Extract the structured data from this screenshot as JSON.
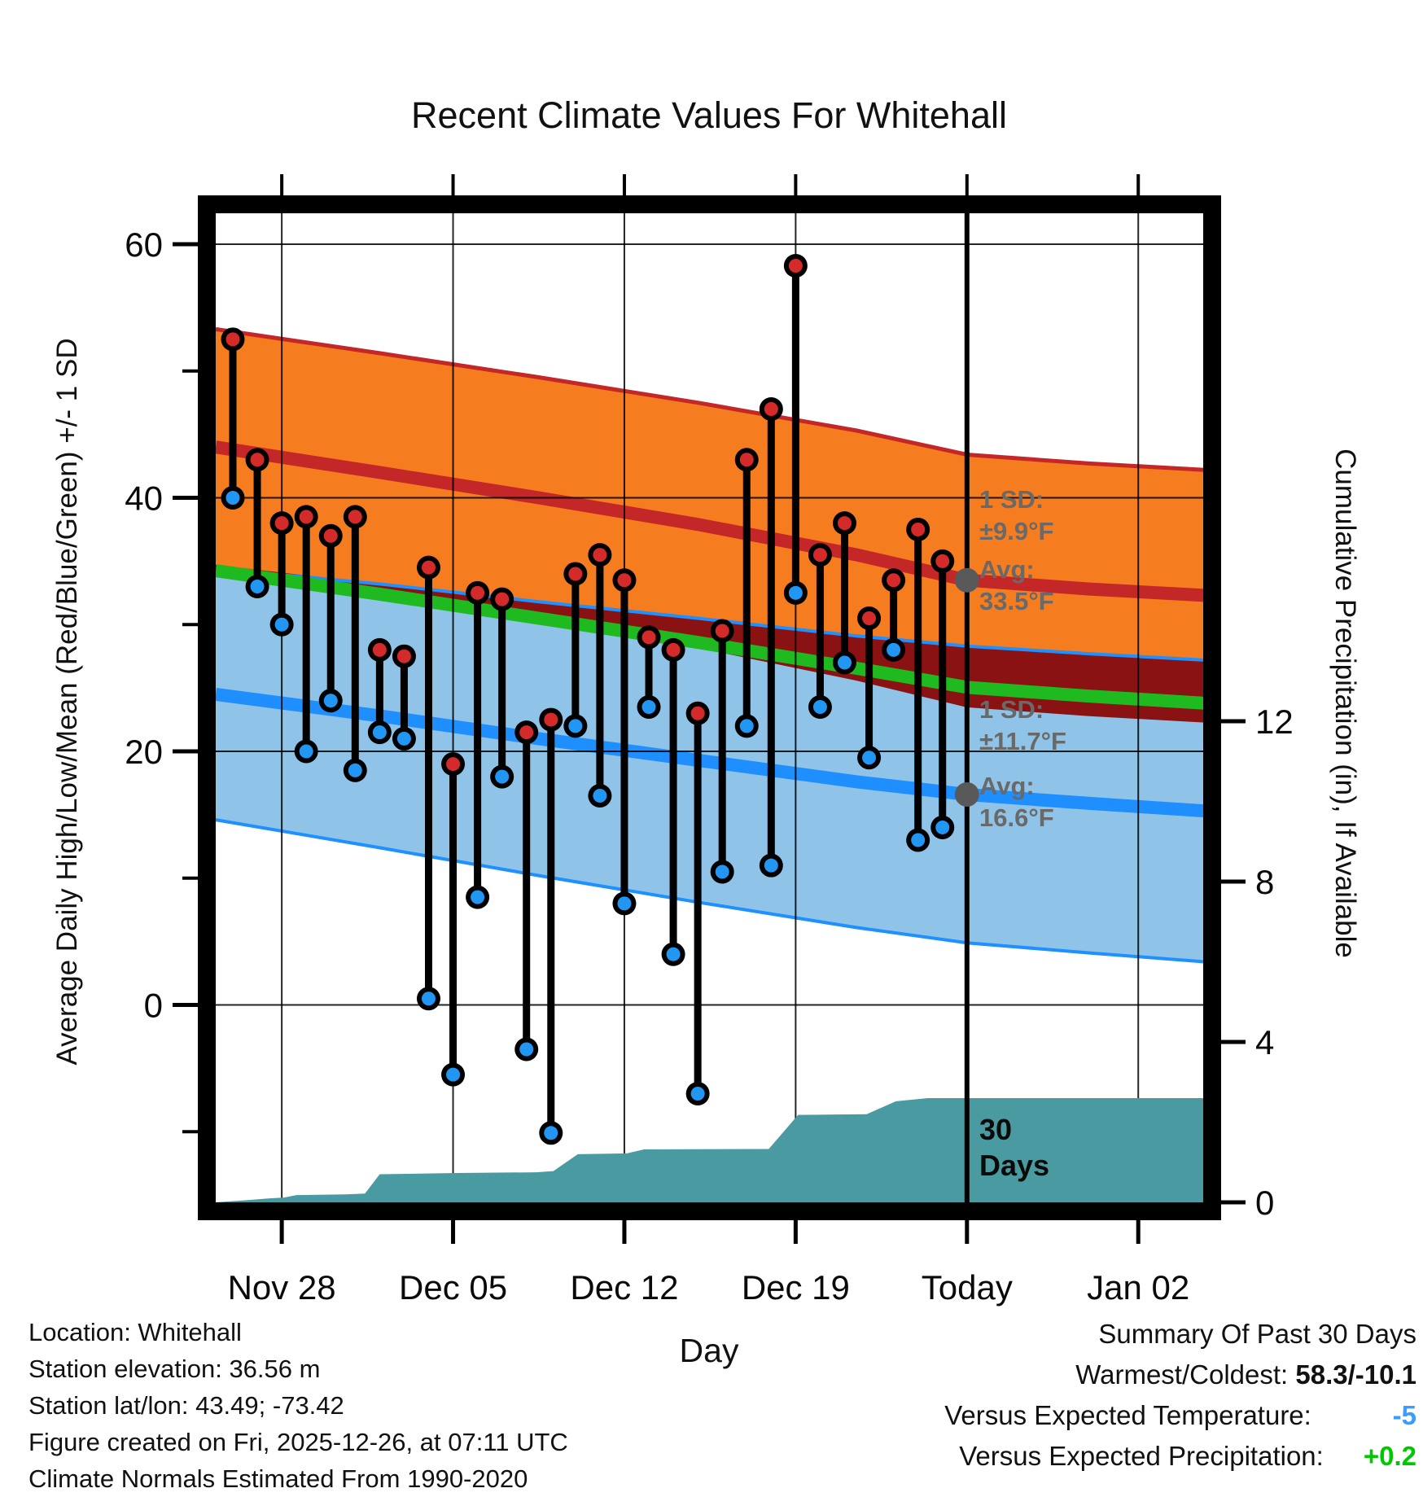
{
  "title": "Recent Climate Values For Whitehall",
  "chart_data": {
    "type": "line",
    "title": "Recent Climate Values For Whitehall",
    "xlabel": "Day",
    "ylabel_left": "Average Daily High/Low/Mean (Red/Blue/Green) +/- 1 SD",
    "ylabel_right": "Cumulative Precipitation (in), If Available",
    "legend_position": "none",
    "grid": true,
    "x_axis": {
      "tick_labels": [
        "Nov 28",
        "Dec 05",
        "Dec 12",
        "Dec 19",
        "Today",
        "Jan 02"
      ],
      "tick_days": [
        2,
        9,
        16,
        23,
        30,
        37
      ],
      "today_day": 30
    },
    "y_left": {
      "major_ticks": [
        60,
        40,
        20,
        0
      ],
      "minor_ticks": [
        50,
        30,
        10,
        -10
      ],
      "units": "F"
    },
    "y_right": {
      "major_ticks": [
        12,
        8,
        4,
        0
      ],
      "units": "in"
    },
    "daily_high_low": [
      {
        "date": "Nov 26",
        "high": 52.5,
        "low": 40
      },
      {
        "date": "Nov 27",
        "high": 43,
        "low": 33
      },
      {
        "date": "Nov 28",
        "high": 38,
        "low": 30
      },
      {
        "date": "Nov 29",
        "high": 38.5,
        "low": 20
      },
      {
        "date": "Nov 30",
        "high": 37,
        "low": 24
      },
      {
        "date": "Dec 01",
        "high": 38.5,
        "low": 18.5
      },
      {
        "date": "Dec 02",
        "high": 28,
        "low": 21.5
      },
      {
        "date": "Dec 03",
        "high": 27.5,
        "low": 21
      },
      {
        "date": "Dec 04",
        "high": 34.5,
        "low": 0.5
      },
      {
        "date": "Dec 05",
        "high": 19,
        "low": -5.5
      },
      {
        "date": "Dec 06",
        "high": 32.5,
        "low": 8.5
      },
      {
        "date": "Dec 07",
        "high": 32,
        "low": 18
      },
      {
        "date": "Dec 08",
        "high": 21.5,
        "low": -3.5
      },
      {
        "date": "Dec 09",
        "high": 22.5,
        "low": -10.1
      },
      {
        "date": "Dec 10",
        "high": 34,
        "low": 22
      },
      {
        "date": "Dec 11",
        "high": 35.5,
        "low": 16.5
      },
      {
        "date": "Dec 12",
        "high": 33.5,
        "low": 8
      },
      {
        "date": "Dec 13",
        "high": 29,
        "low": 23.5
      },
      {
        "date": "Dec 14",
        "high": 28,
        "low": 4
      },
      {
        "date": "Dec 15",
        "high": 23,
        "low": -7
      },
      {
        "date": "Dec 16",
        "high": 29.5,
        "low": 10.5
      },
      {
        "date": "Dec 17",
        "high": 43,
        "low": 22
      },
      {
        "date": "Dec 18",
        "high": 47,
        "low": 11
      },
      {
        "date": "Dec 19",
        "high": 58.3,
        "low": 32.5
      },
      {
        "date": "Dec 20",
        "high": 35.5,
        "low": 23.5
      },
      {
        "date": "Dec 21",
        "high": 38,
        "low": 27
      },
      {
        "date": "Dec 22",
        "high": 30.5,
        "low": 19.5
      },
      {
        "date": "Dec 23",
        "high": 33.5,
        "low": 28
      },
      {
        "date": "Dec 24",
        "high": 37.5,
        "low": 13
      },
      {
        "date": "Dec 25",
        "high": 35,
        "low": 14
      }
    ],
    "climate_normals": [
      {
        "day": -0.7,
        "avg_high": 44.0,
        "avg_low": 24.5,
        "sd_high": 9.3,
        "sd_low": 9.9
      },
      {
        "day": 6,
        "avg_high": 42.0,
        "avg_low": 22.8,
        "sd_high": 9.4,
        "sd_low": 10.4
      },
      {
        "day": 12.5,
        "avg_high": 40.0,
        "avg_low": 21.0,
        "sd_high": 9.5,
        "sd_low": 10.8
      },
      {
        "day": 19,
        "avg_high": 37.9,
        "avg_low": 19.3,
        "sd_high": 9.6,
        "sd_low": 11.2
      },
      {
        "day": 25.5,
        "avg_high": 35.5,
        "avg_low": 17.6,
        "sd_high": 9.8,
        "sd_low": 11.5
      },
      {
        "day": 30,
        "avg_high": 33.5,
        "avg_low": 16.6,
        "sd_high": 9.9,
        "sd_low": 11.7
      },
      {
        "day": 35,
        "avg_high": 32.8,
        "avg_low": 15.9,
        "sd_high": 9.9,
        "sd_low": 11.8
      },
      {
        "day": 39.7,
        "avg_high": 32.3,
        "avg_low": 15.3,
        "sd_high": 9.9,
        "sd_low": 11.9
      }
    ],
    "cumulative_precip_in": [
      [
        -0.7,
        0.0
      ],
      [
        0.5,
        0.05
      ],
      [
        1.5,
        0.1
      ],
      [
        2.1,
        0.12
      ],
      [
        2.6,
        0.18
      ],
      [
        4.6,
        0.2
      ],
      [
        5.4,
        0.22
      ],
      [
        6.0,
        0.7
      ],
      [
        9.1,
        0.73
      ],
      [
        12.4,
        0.75
      ],
      [
        13.1,
        0.78
      ],
      [
        14.1,
        1.2
      ],
      [
        16.1,
        1.22
      ],
      [
        16.8,
        1.32
      ],
      [
        21.9,
        1.33
      ],
      [
        23.1,
        2.18
      ],
      [
        25.9,
        2.2
      ],
      [
        27.1,
        2.52
      ],
      [
        28.4,
        2.6
      ],
      [
        39.7,
        2.6
      ]
    ],
    "colors": {
      "high_band": "#f57d20",
      "high_band_edge": "#c42727",
      "avg_high_line": "#c42727",
      "overlap_band": "#8b1212",
      "mean_line": "#1fba1f",
      "low_band": "#8fc4e8",
      "low_band_edge": "#1e90ff",
      "avg_low_line": "#1f8fff",
      "precip_fill": "#4a9ba1",
      "stem": "#000000",
      "high_dot": "#d42a2a",
      "low_dot": "#2196f3",
      "today_marker": "#595959"
    }
  },
  "annotations": {
    "high_sd_label": "1 SD:",
    "high_sd_value": "±9.9°F",
    "high_avg_label": "Avg:",
    "high_avg_value": "33.5°F",
    "low_sd_label": "1 SD:",
    "low_sd_value": "±11.7°F",
    "low_avg_label": "Avg:",
    "low_avg_value": "16.6°F",
    "period_line1": "30",
    "period_line2": "Days"
  },
  "footer": {
    "location": "Location: Whitehall",
    "elevation": "Station elevation: 36.56 m",
    "latlon": "Station lat/lon: 43.49; -73.42",
    "created": "Figure created on Fri, 2025-12-26, at 07:11 UTC",
    "normals_note": "Climate Normals Estimated From 1990-2020",
    "summary_title": "Summary Of Past 30 Days",
    "warmest_coldest_label": "Warmest/Coldest:",
    "warmest_coldest_value": "58.3/-10.1",
    "vs_temp_label": "Versus Expected Temperature:",
    "vs_temp_value": "-5",
    "vs_precip_label": "Versus Expected Precipitation:",
    "vs_precip_value": "+0.2",
    "vs_temp_color": "#3b9cff",
    "vs_precip_color": "#00c800"
  }
}
